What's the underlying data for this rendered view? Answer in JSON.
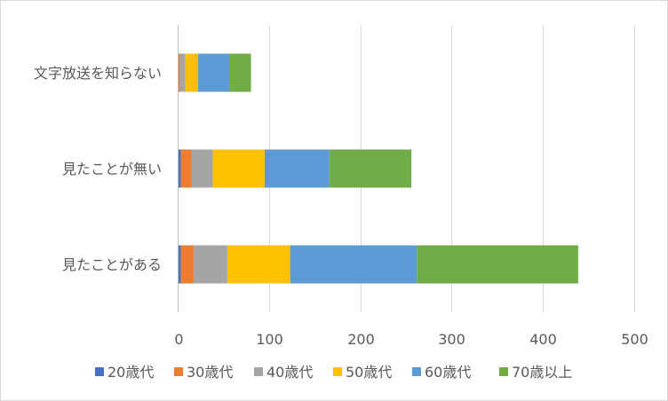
{
  "chart_data": {
    "type": "bar",
    "orientation": "horizontal",
    "stacked": true,
    "categories": [
      "見たことがある",
      "見たことが無い",
      "文字放送を知らない"
    ],
    "series": [
      {
        "name": "20歳代",
        "color": "#4472c4",
        "values": [
          3,
          3,
          0
        ]
      },
      {
        "name": "30歳代",
        "color": "#ed7d31",
        "values": [
          14,
          12,
          2
        ]
      },
      {
        "name": "40歳代",
        "color": "#a5a5a5",
        "values": [
          37,
          23,
          6
        ]
      },
      {
        "name": "50歳代",
        "color": "#ffc000",
        "values": [
          69,
          57,
          14
        ]
      },
      {
        "name": "60歳代",
        "color": "#5b9bd5",
        "values": [
          139,
          71,
          34
        ]
      },
      {
        "name": "70歳以上",
        "color": "#70ad47",
        "values": [
          177,
          90,
          24
        ]
      }
    ],
    "xlim": [
      0,
      500
    ],
    "xticks": [
      0,
      100,
      200,
      300,
      400,
      500
    ],
    "grid": true,
    "legend": "bottom",
    "title": "",
    "xlabel": "",
    "ylabel": ""
  }
}
